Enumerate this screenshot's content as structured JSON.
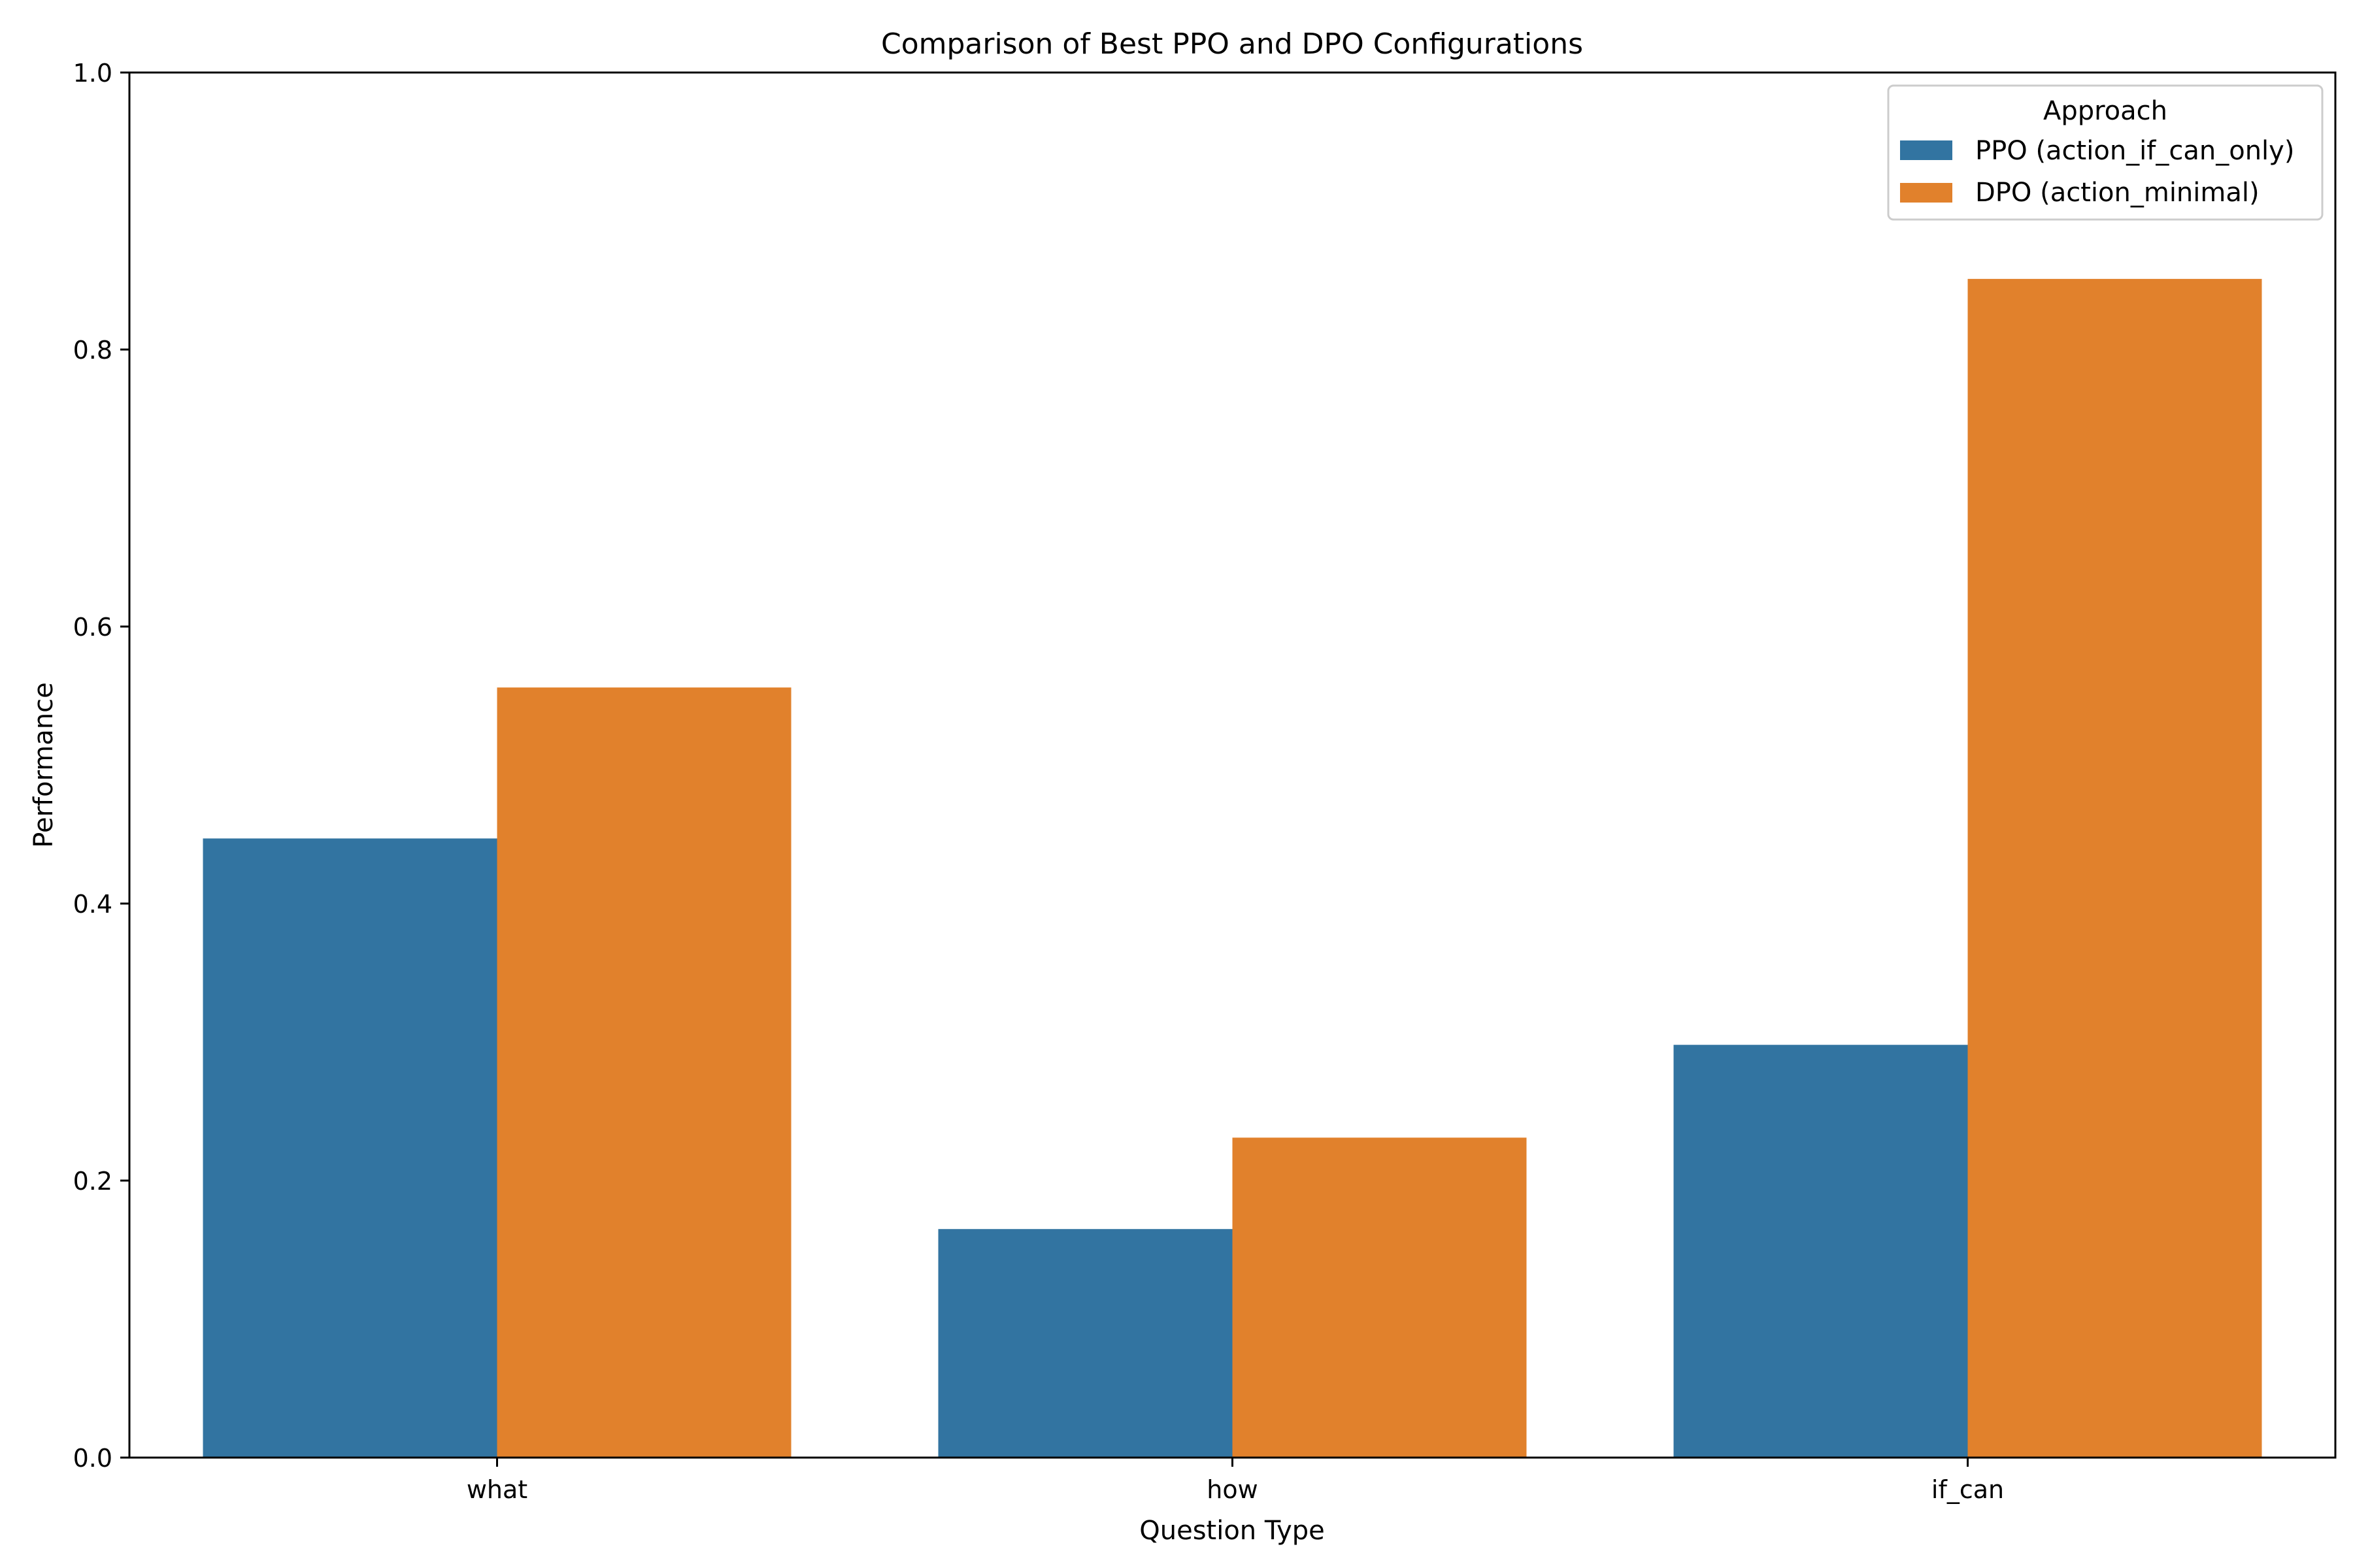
{
  "chart_data": {
    "type": "bar",
    "title": "Comparison of Best PPO and DPO Configurations",
    "xlabel": "Question Type",
    "ylabel": "Performance",
    "categories": [
      "what",
      "how",
      "if_can"
    ],
    "ylim": [
      0,
      1.0
    ],
    "yticks": [
      0.0,
      0.2,
      0.4,
      0.6,
      0.8,
      1.0
    ],
    "ytick_labels": [
      "0.0",
      "0.2",
      "0.4",
      "0.6",
      "0.8",
      "1.0"
    ],
    "grid": false,
    "legend": {
      "title": "Approach",
      "placement": "top-right"
    },
    "series": [
      {
        "name": "PPO (action_if_can_only)",
        "color": "#3274a1",
        "values": [
          0.447,
          0.165,
          0.298
        ]
      },
      {
        "name": "DPO (action_minimal)",
        "color": "#e1812c",
        "values": [
          0.556,
          0.231,
          0.851
        ]
      }
    ]
  }
}
